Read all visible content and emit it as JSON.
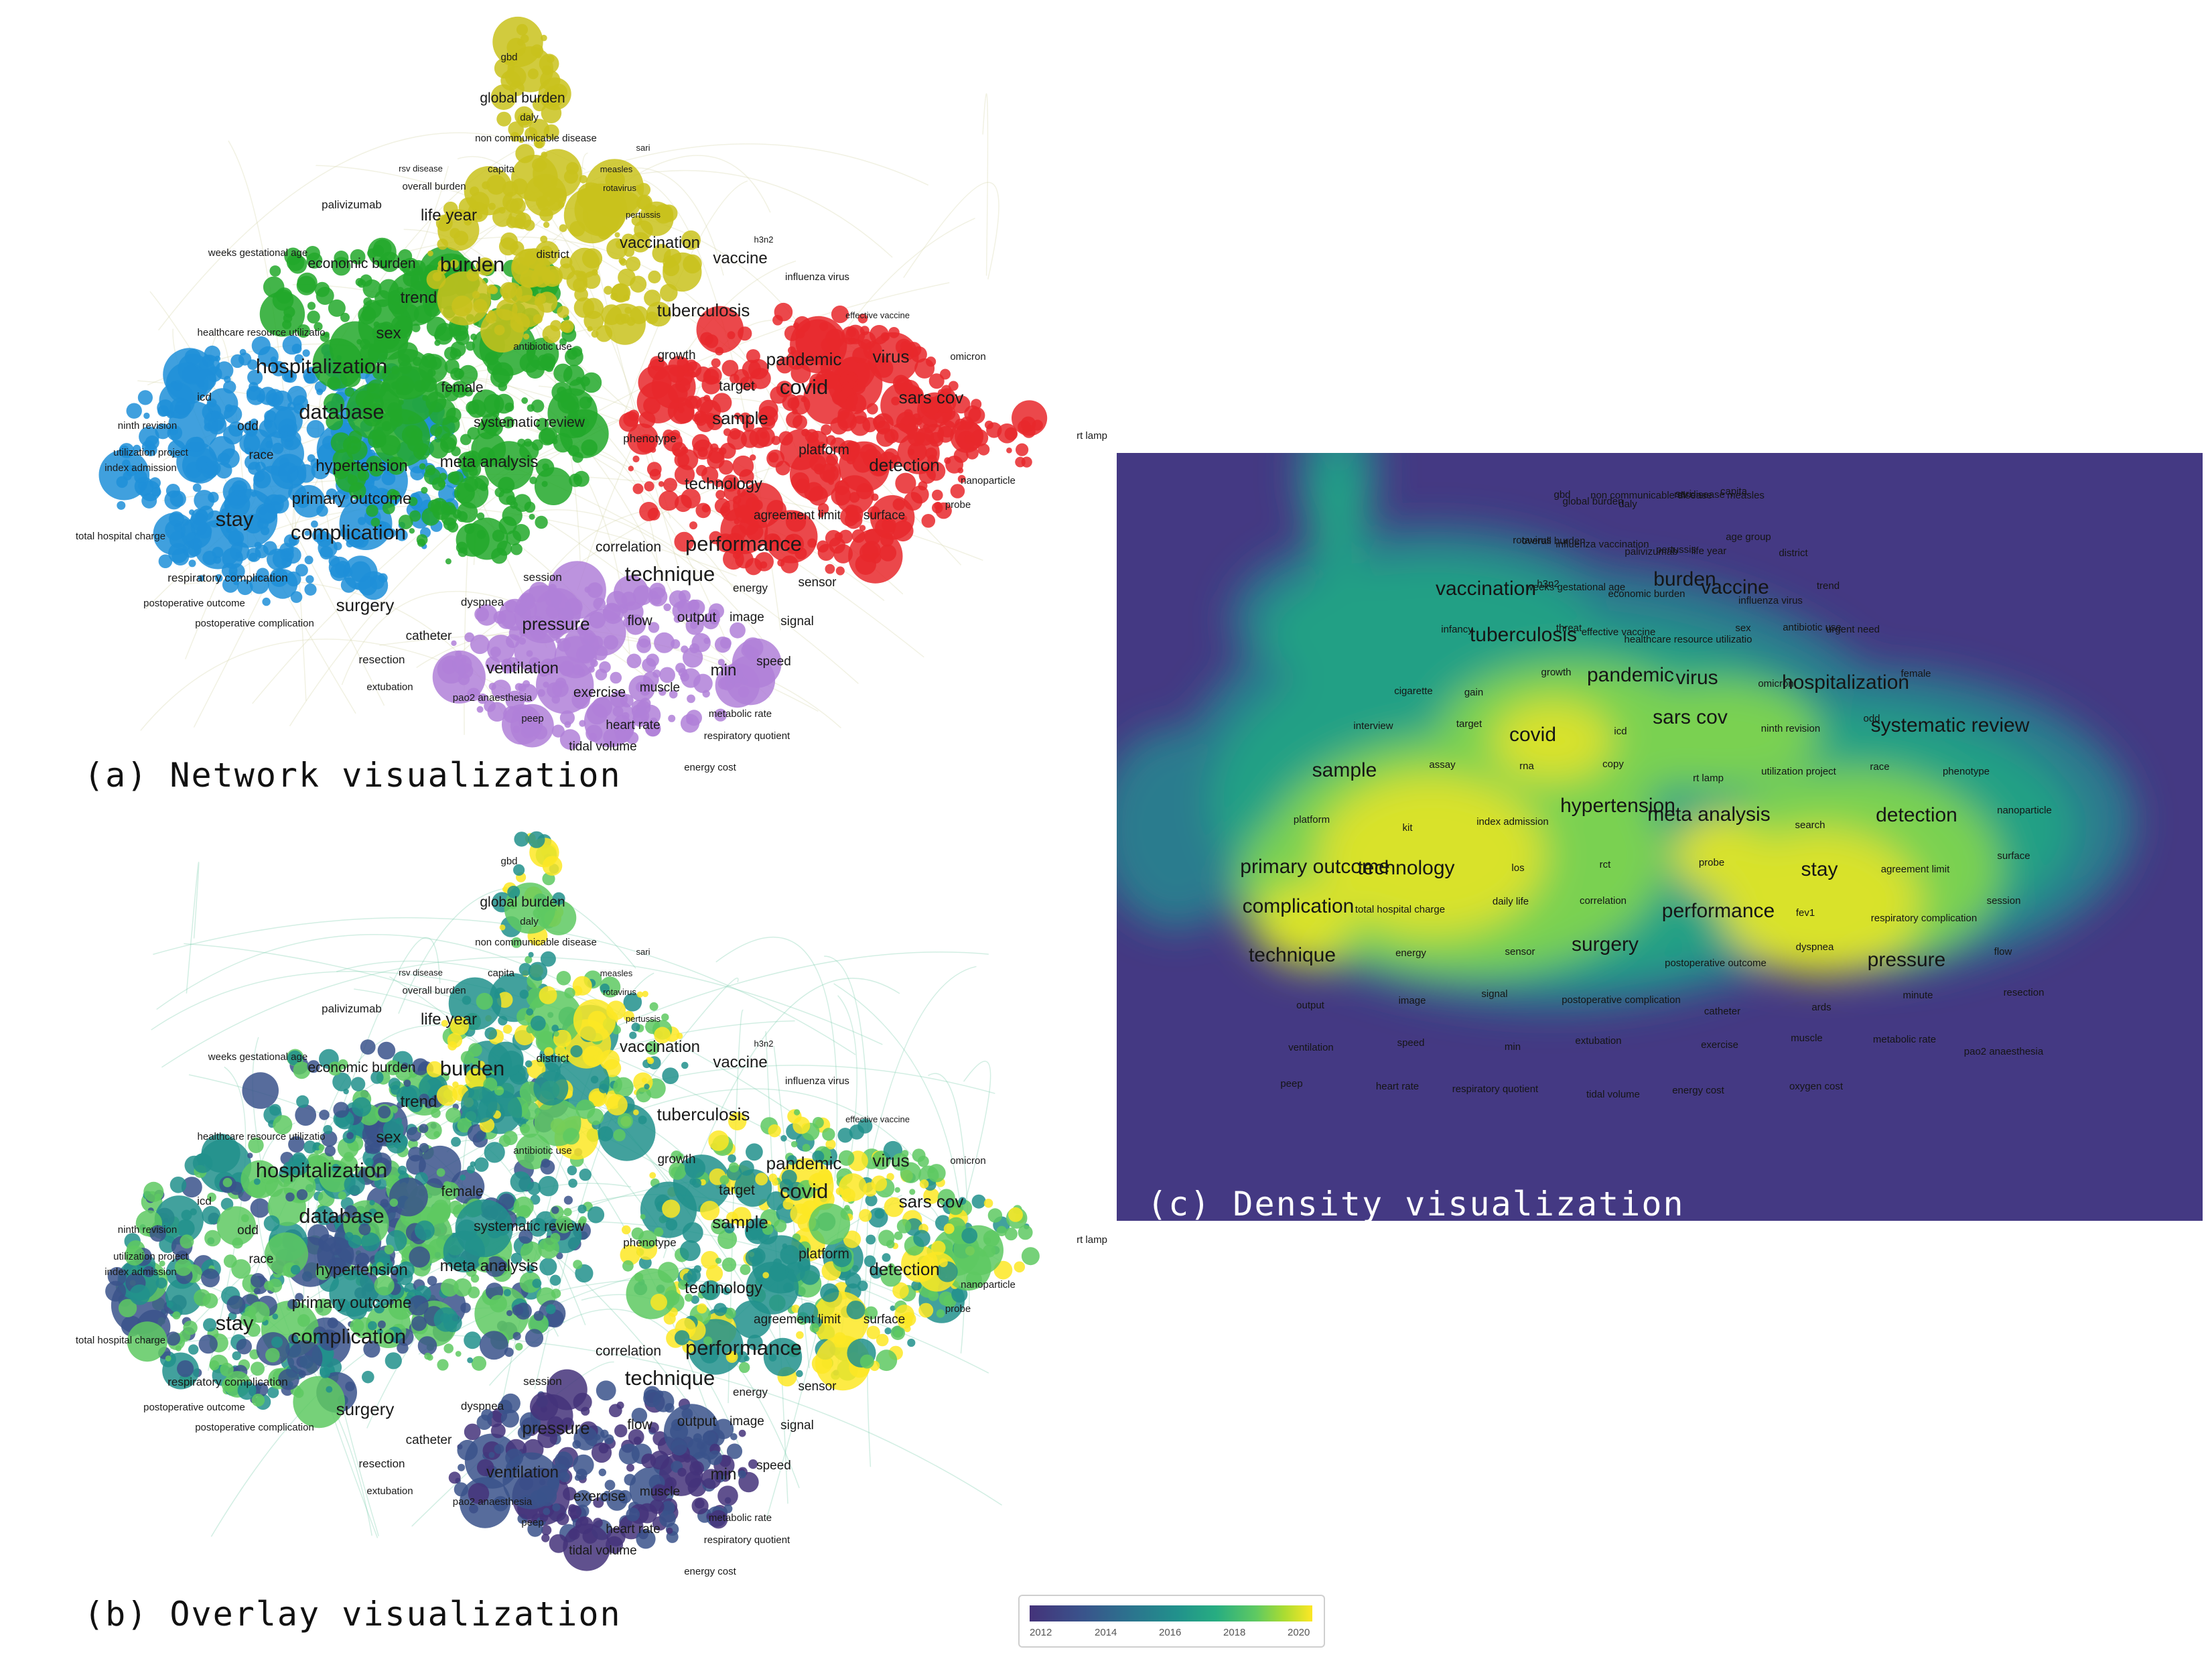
{
  "captions": {
    "a": "(a) Network visualization",
    "b": "(b) Overlay visualization",
    "c": "(c) Density visualization"
  },
  "colorbar": {
    "ticks": [
      "2012",
      "2014",
      "2016",
      "2018",
      "2020"
    ],
    "colors": [
      "#44337a",
      "#3a528b",
      "#21918c",
      "#5ec962",
      "#fde725"
    ]
  },
  "clusters": {
    "red": "#e8282b",
    "blue": "#1f8fd8",
    "green": "#22a82a",
    "yellow": "#c9c21c",
    "purple": "#b080d8"
  },
  "network_labels": [
    {
      "t": "gbd",
      "c": "yellow"
    },
    {
      "t": "global burden",
      "c": "yellow"
    },
    {
      "t": "daly",
      "c": "yellow"
    },
    {
      "t": "non communicable disease",
      "c": "yellow"
    },
    {
      "t": "sari",
      "c": "yellow"
    },
    {
      "t": "rsv disease",
      "c": "blue"
    },
    {
      "t": "capita",
      "c": "yellow"
    },
    {
      "t": "measles",
      "c": "yellow"
    },
    {
      "t": "overall burden",
      "c": "yellow"
    },
    {
      "t": "rotavirus",
      "c": "yellow"
    },
    {
      "t": "palivizumab",
      "c": "blue"
    },
    {
      "t": "pertussis",
      "c": "yellow"
    },
    {
      "t": "life year",
      "c": "yellow"
    },
    {
      "t": "weeks gestational age",
      "c": "blue"
    },
    {
      "t": "district",
      "c": "yellow"
    },
    {
      "t": "vaccination",
      "c": "yellow"
    },
    {
      "t": "h3n2",
      "c": "yellow"
    },
    {
      "t": "economic burden",
      "c": "green"
    },
    {
      "t": "burden",
      "c": "yellow"
    },
    {
      "t": "vaccine",
      "c": "yellow"
    },
    {
      "t": "influenza virus",
      "c": "yellow"
    },
    {
      "t": "trend",
      "c": "green"
    },
    {
      "t": "tuberculosis",
      "c": "red"
    },
    {
      "t": "effective vaccine",
      "c": "red"
    },
    {
      "t": "healthcare resource utilizatio",
      "c": "blue"
    },
    {
      "t": "sex",
      "c": "green"
    },
    {
      "t": "antibiotic use",
      "c": "green"
    },
    {
      "t": "growth",
      "c": "green"
    },
    {
      "t": "pandemic",
      "c": "red"
    },
    {
      "t": "virus",
      "c": "red"
    },
    {
      "t": "omicron",
      "c": "red"
    },
    {
      "t": "hospitalization",
      "c": "blue"
    },
    {
      "t": "female",
      "c": "green"
    },
    {
      "t": "target",
      "c": "red"
    },
    {
      "t": "covid",
      "c": "red"
    },
    {
      "t": "sars cov",
      "c": "red"
    },
    {
      "t": "database",
      "c": "blue"
    },
    {
      "t": "icd",
      "c": "blue"
    },
    {
      "t": "systematic review",
      "c": "green"
    },
    {
      "t": "sample",
      "c": "red"
    },
    {
      "t": "ninth revision",
      "c": "blue"
    },
    {
      "t": "odd",
      "c": "blue"
    },
    {
      "t": "phenotype",
      "c": "green"
    },
    {
      "t": "rt lamp",
      "c": "red"
    },
    {
      "t": "utilization project",
      "c": "blue"
    },
    {
      "t": "race",
      "c": "blue"
    },
    {
      "t": "platform",
      "c": "red"
    },
    {
      "t": "index admission",
      "c": "blue"
    },
    {
      "t": "hypertension",
      "c": "blue"
    },
    {
      "t": "meta analysis",
      "c": "green"
    },
    {
      "t": "detection",
      "c": "red"
    },
    {
      "t": "nanoparticle",
      "c": "red"
    },
    {
      "t": "primary outcome",
      "c": "blue"
    },
    {
      "t": "technology",
      "c": "red"
    },
    {
      "t": "stay",
      "c": "blue"
    },
    {
      "t": "agreement limit",
      "c": "red"
    },
    {
      "t": "surface",
      "c": "red"
    },
    {
      "t": "probe",
      "c": "red"
    },
    {
      "t": "complication",
      "c": "blue"
    },
    {
      "t": "total hospital charge",
      "c": "blue"
    },
    {
      "t": "correlation",
      "c": "red"
    },
    {
      "t": "performance",
      "c": "red"
    },
    {
      "t": "respiratory complication",
      "c": "blue"
    },
    {
      "t": "technique",
      "c": "red"
    },
    {
      "t": "sensor",
      "c": "red"
    },
    {
      "t": "session",
      "c": "purple"
    },
    {
      "t": "energy",
      "c": "red"
    },
    {
      "t": "surgery",
      "c": "blue"
    },
    {
      "t": "postoperative outcome",
      "c": "blue"
    },
    {
      "t": "dyspnea",
      "c": "purple"
    },
    {
      "t": "postoperative complication",
      "c": "blue"
    },
    {
      "t": "pressure",
      "c": "purple"
    },
    {
      "t": "flow",
      "c": "purple"
    },
    {
      "t": "output",
      "c": "purple"
    },
    {
      "t": "image",
      "c": "red"
    },
    {
      "t": "signal",
      "c": "red"
    },
    {
      "t": "catheter",
      "c": "purple"
    },
    {
      "t": "resection",
      "c": "blue"
    },
    {
      "t": "ventilation",
      "c": "purple"
    },
    {
      "t": "speed",
      "c": "purple"
    },
    {
      "t": "min",
      "c": "purple"
    },
    {
      "t": "extubation",
      "c": "blue"
    },
    {
      "t": "exercise",
      "c": "purple"
    },
    {
      "t": "muscle",
      "c": "purple"
    },
    {
      "t": "pao2 anaesthesia",
      "c": "purple"
    },
    {
      "t": "metabolic rate",
      "c": "purple"
    },
    {
      "t": "peep",
      "c": "purple"
    },
    {
      "t": "heart rate",
      "c": "purple"
    },
    {
      "t": "respiratory quotient",
      "c": "purple"
    },
    {
      "t": "tidal volume",
      "c": "purple"
    },
    {
      "t": "energy cost",
      "c": "purple"
    }
  ],
  "density_labels": [
    "gbd",
    "global burden",
    "daly",
    "non communicable disease",
    "sari",
    "rsv disease",
    "capita",
    "measles",
    "rotavirus",
    "overall burden",
    "influenza vaccination",
    "palivizumab",
    "pertussis",
    "life year",
    "age group",
    "district",
    "vaccination",
    "h3n2",
    "weeks gestational age",
    "economic burden",
    "burden",
    "vaccine",
    "influenza virus",
    "trend",
    "infancy",
    "tuberculosis",
    "threat",
    "effective vaccine",
    "healthcare resource utilizatio",
    "sex",
    "antibiotic use",
    "urgent need",
    "cigarette",
    "gain",
    "growth",
    "pandemic",
    "virus",
    "omicron",
    "hospitalization",
    "female",
    "interview",
    "target",
    "covid",
    "icd",
    "sars cov",
    "ninth revision",
    "odd",
    "systematic review",
    "sample",
    "assay",
    "rna",
    "copy",
    "rt lamp",
    "utilization project",
    "race",
    "phenotype",
    "platform",
    "kit",
    "index admission",
    "hypertension",
    "meta analysis",
    "search",
    "detection",
    "nanoparticle",
    "primary outcome",
    "technology",
    "los",
    "rct",
    "probe",
    "stay",
    "agreement limit",
    "surface",
    "complication",
    "total hospital charge",
    "daily life",
    "correlation",
    "performance",
    "fev1",
    "respiratory complication",
    "session",
    "technique",
    "energy",
    "sensor",
    "surgery",
    "postoperative outcome",
    "dyspnea",
    "pressure",
    "flow",
    "output",
    "image",
    "signal",
    "postoperative complication",
    "catheter",
    "ards",
    "minute",
    "resection",
    "ventilation",
    "speed",
    "min",
    "extubation",
    "exercise",
    "muscle",
    "metabolic rate",
    "pao2 anaesthesia",
    "peep",
    "heart rate",
    "respiratory quotient",
    "tidal volume",
    "energy cost",
    "oxygen cost"
  ]
}
